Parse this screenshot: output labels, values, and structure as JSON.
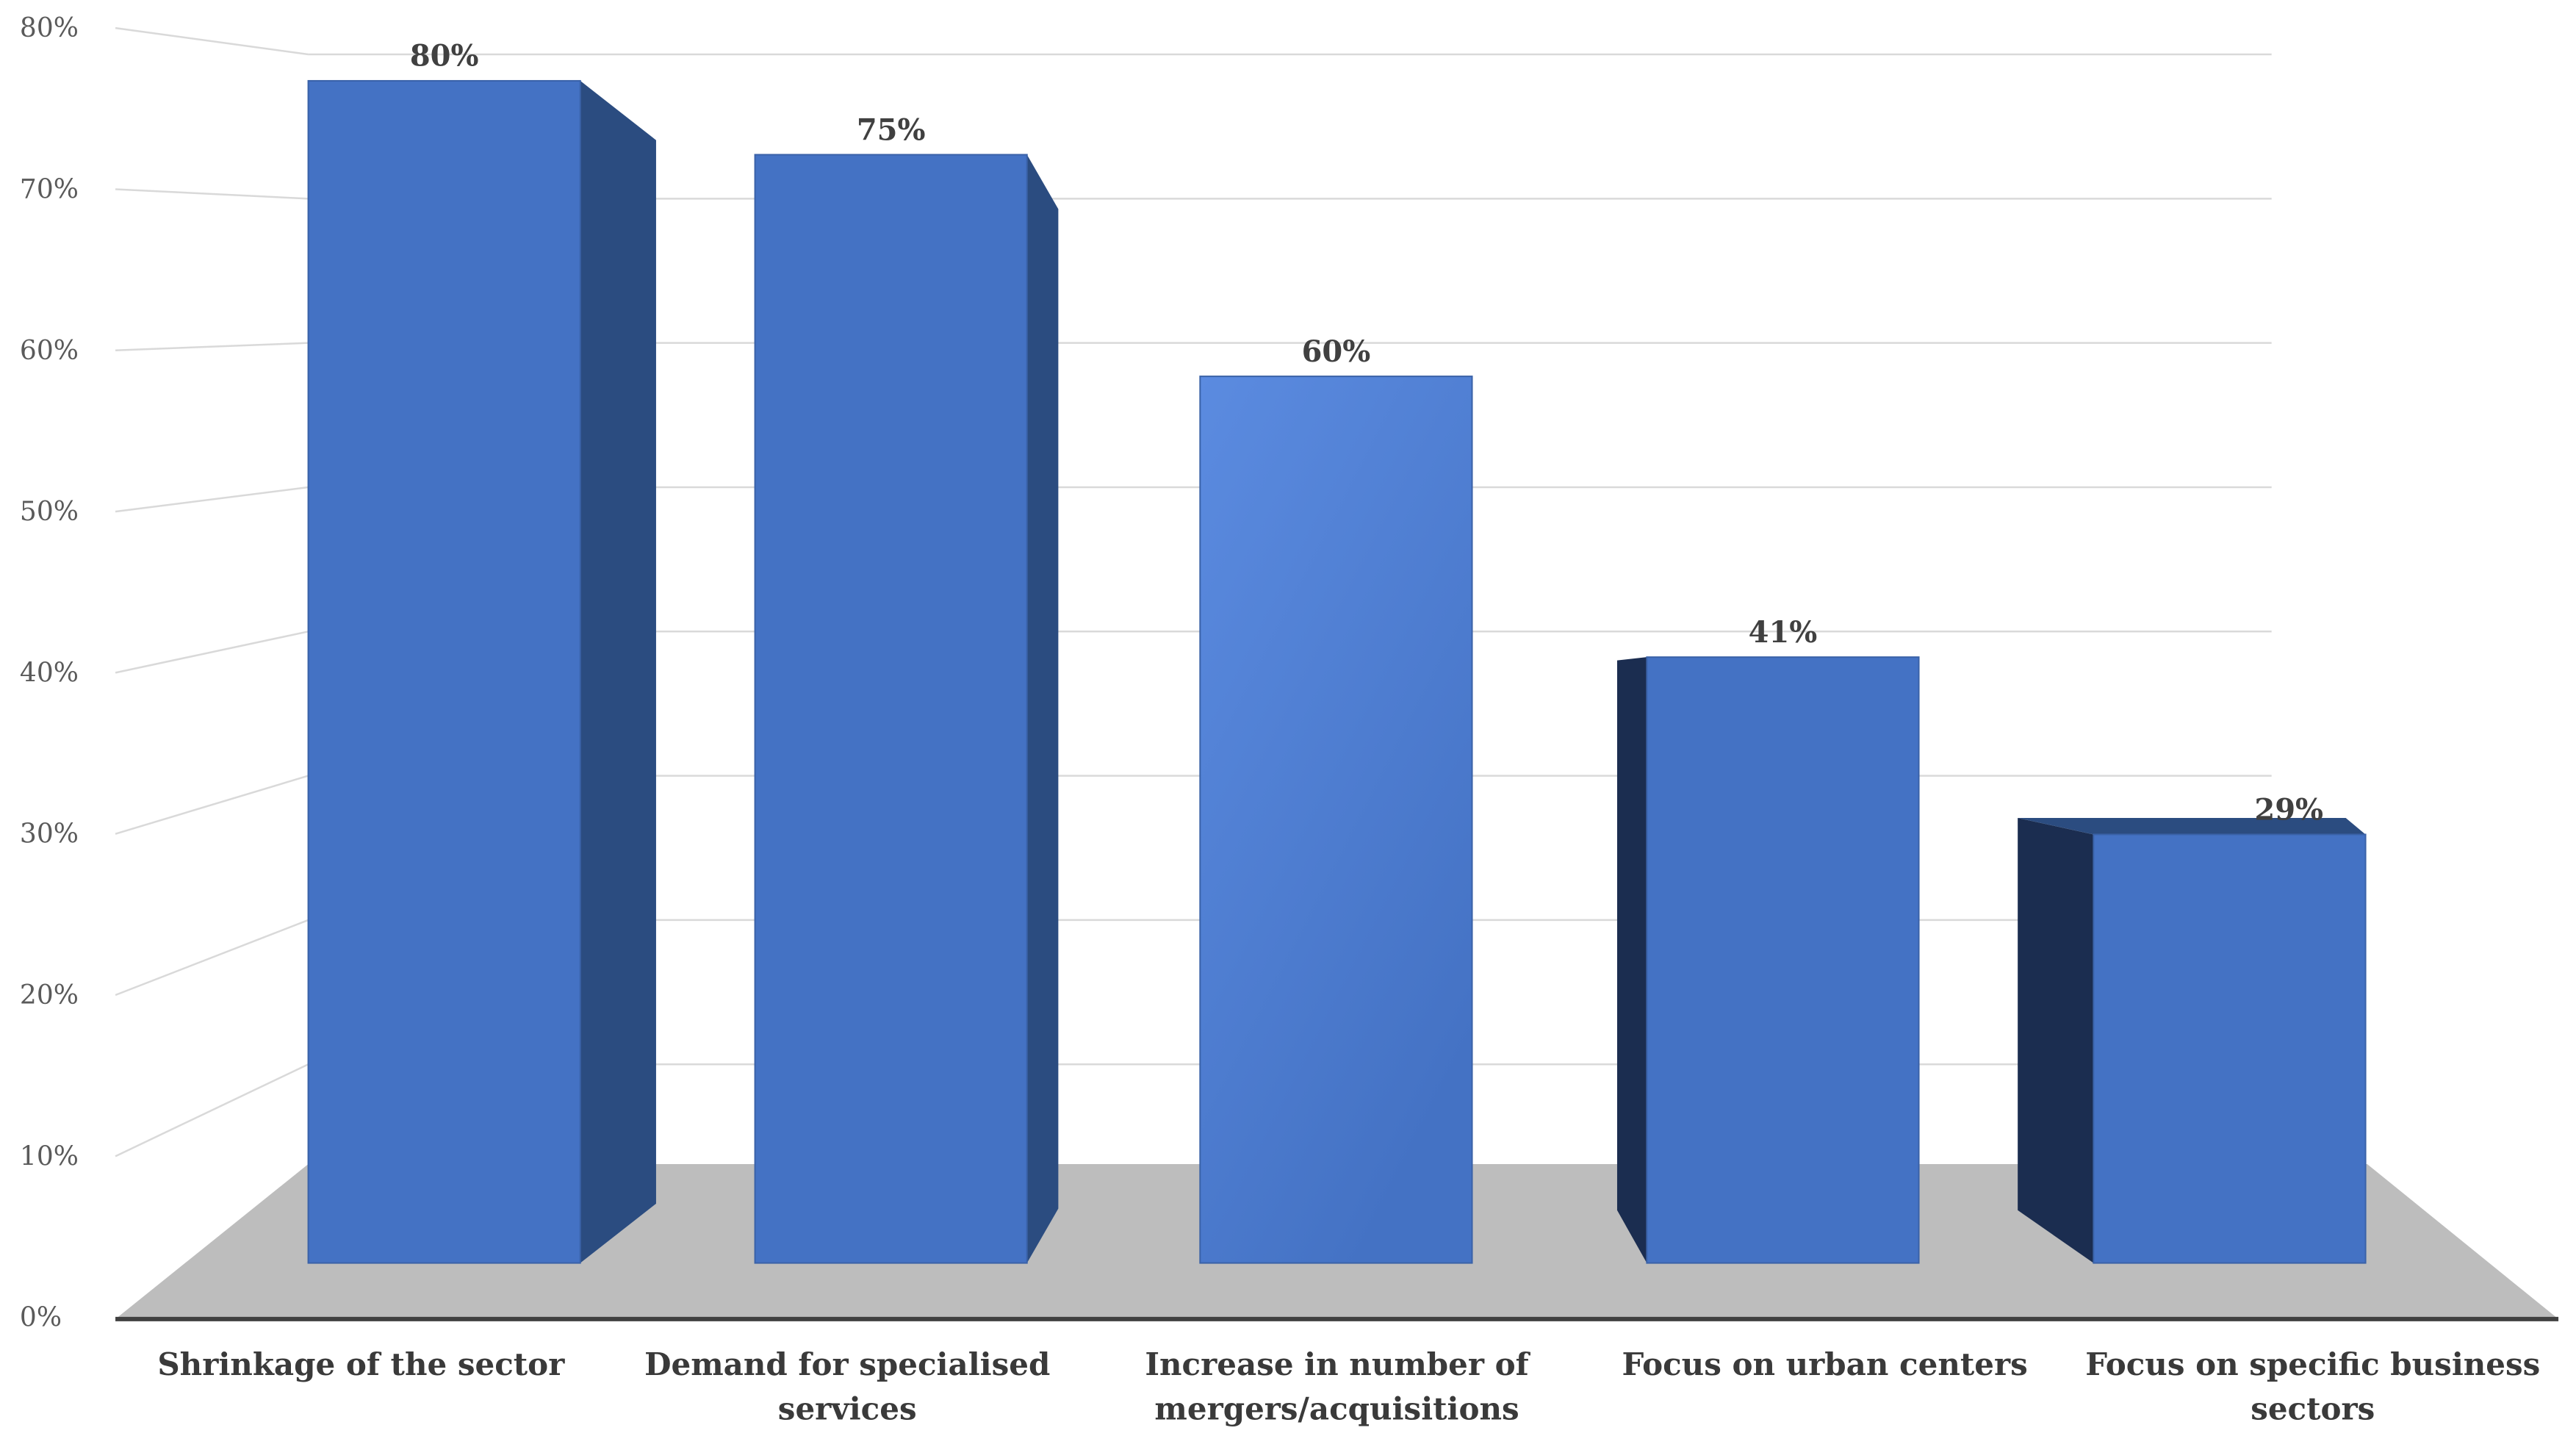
{
  "chart_data": {
    "type": "bar",
    "categories": [
      [
        "Shrinkage of the sector"
      ],
      [
        "Demand for specialised",
        "services"
      ],
      [
        "Increase in number of",
        "mergers/acquisitions"
      ],
      [
        "Focus on urban centers"
      ],
      [
        "Focus on specific business",
        "sectors"
      ]
    ],
    "values": [
      80,
      75,
      60,
      41,
      29
    ],
    "data_labels": [
      "80%",
      "75%",
      "60%",
      "41%",
      "29%"
    ],
    "y_ticks": [
      "0%",
      "10%",
      "20%",
      "30%",
      "40%",
      "50%",
      "60%",
      "70%",
      "80%"
    ],
    "ylim": [
      0,
      80
    ],
    "grid": true,
    "legend": "none",
    "style": "3d-perspective",
    "colors": {
      "bar_front": "#4472C4",
      "bar_front_light": "#5B8BE0",
      "bar_side": "#2B4C80",
      "bar_side_dark": "#1B2D50",
      "floor": "#BDBDBD",
      "grid": "#D9D9D9",
      "baseline": "#404040"
    }
  }
}
